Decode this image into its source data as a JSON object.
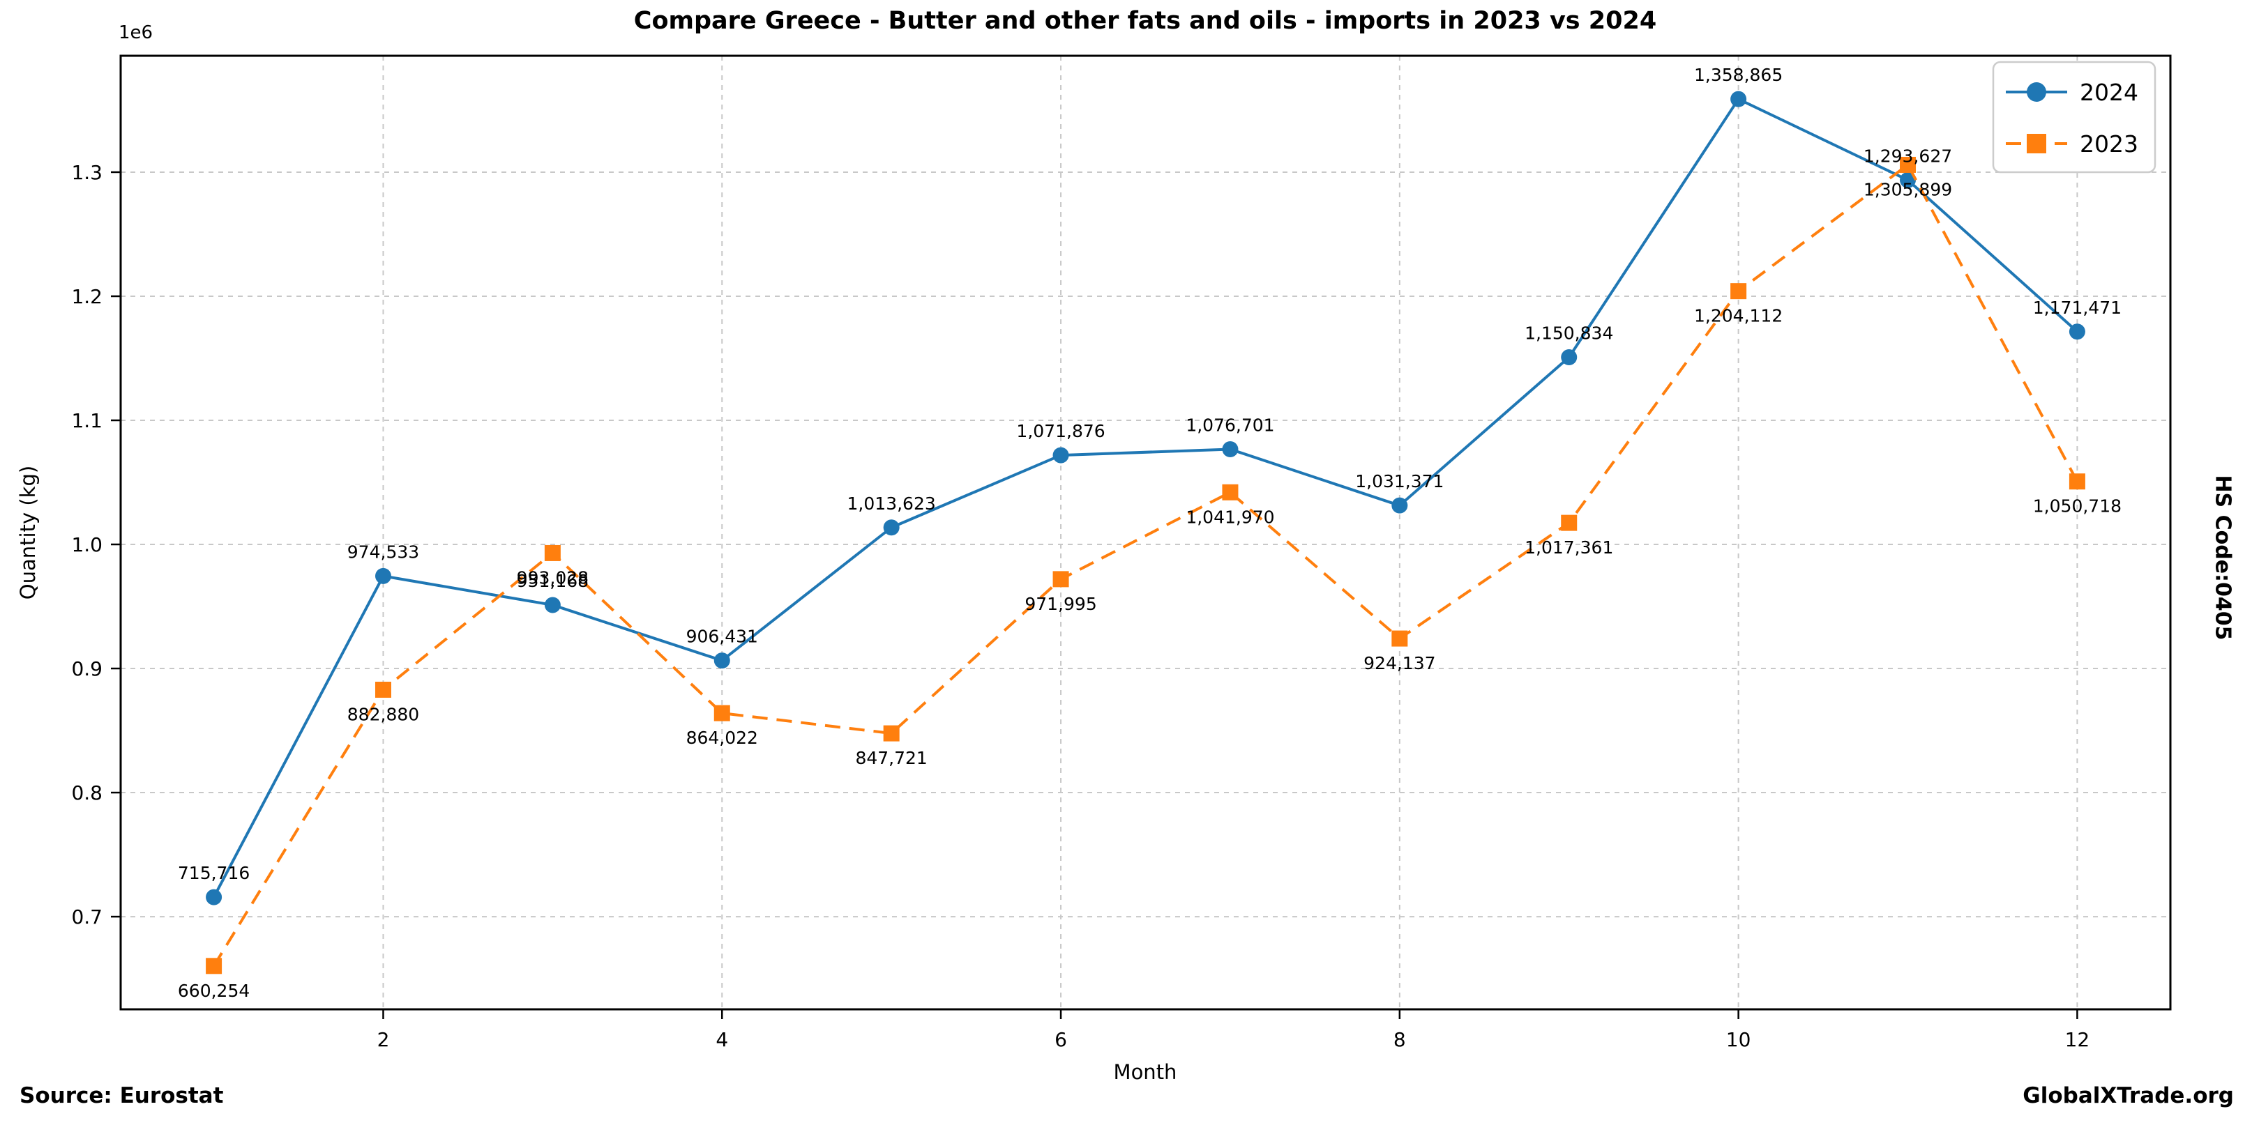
{
  "footer": {
    "source": "Source: Eurostat",
    "brand": "GlobalXTrade.org"
  },
  "side_label": "HS Code:0405",
  "chart_data": {
    "type": "line",
    "title": "Compare Greece - Butter and other fats and oils - imports in 2023 vs 2024",
    "xlabel": "Month",
    "ylabel": "Quantity (kg)",
    "y_offset_label": "1e6",
    "x": [
      1,
      2,
      3,
      4,
      5,
      6,
      7,
      8,
      9,
      10,
      11,
      12
    ],
    "xticks": [
      2,
      4,
      6,
      8,
      10,
      12
    ],
    "yticks": [
      700000,
      800000,
      900000,
      1000000,
      1100000,
      1200000,
      1300000
    ],
    "xlim": [
      0.45,
      12.55
    ],
    "ylim": [
      625324,
      1393796
    ],
    "grid": true,
    "grid_color": "#c8c8c8",
    "legend": {
      "position": "upper right",
      "entries": [
        "2024",
        "2023"
      ]
    },
    "series": [
      {
        "name": "2024",
        "color": "#1f77b4",
        "line_style": "solid",
        "marker": "circle",
        "label_side": "above",
        "values": [
          715716,
          974533,
          951168,
          906431,
          1013623,
          1071876,
          1076701,
          1031371,
          1150834,
          1358865,
          1293627,
          1171471
        ]
      },
      {
        "name": "2023",
        "color": "#ff7f0e",
        "line_style": "dashed",
        "marker": "square",
        "label_side": "below",
        "values": [
          660254,
          882880,
          993028,
          864022,
          847721,
          971995,
          1041970,
          924137,
          1017361,
          1204112,
          1305899,
          1050718
        ]
      }
    ]
  }
}
